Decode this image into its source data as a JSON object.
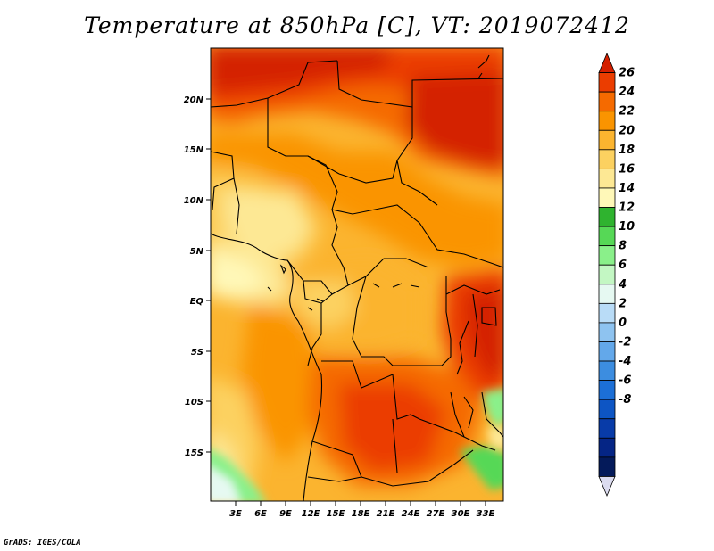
{
  "title": "Temperature at 850hPa [C], VT: 2019072412",
  "footer": "GrADS: IGES/COLA",
  "map": {
    "lon_range": [
      0,
      35
    ],
    "lat_range": [
      -20,
      25
    ],
    "lon_ticks": [
      "3E",
      "6E",
      "9E",
      "12E",
      "15E",
      "18E",
      "21E",
      "24E",
      "27E",
      "30E",
      "33E"
    ],
    "lat_ticks": [
      "20N",
      "15N",
      "10N",
      "5N",
      "EQ",
      "5S",
      "10S",
      "15S"
    ]
  },
  "colorbar": {
    "labels": [
      "26",
      "24",
      "22",
      "20",
      "18",
      "16",
      "14",
      "12",
      "10",
      "8",
      "6",
      "4",
      "2",
      "0",
      "-2",
      "-4",
      "-6",
      "-8"
    ],
    "colors": [
      "#d42000",
      "#eb3d00",
      "#f56a00",
      "#fa9400",
      "#fbb42f",
      "#fcd160",
      "#fde894",
      "#fff8b8",
      "#2fb32f",
      "#56d856",
      "#8af08a",
      "#c3f7c3",
      "#e6f9f2",
      "#b9dcf7",
      "#8ec3f0",
      "#63a8ea",
      "#3c8de0",
      "#1c6fd6",
      "#0d55c4",
      "#083ba8",
      "#052585",
      "#041a5a",
      "#dcdcf0"
    ]
  }
}
